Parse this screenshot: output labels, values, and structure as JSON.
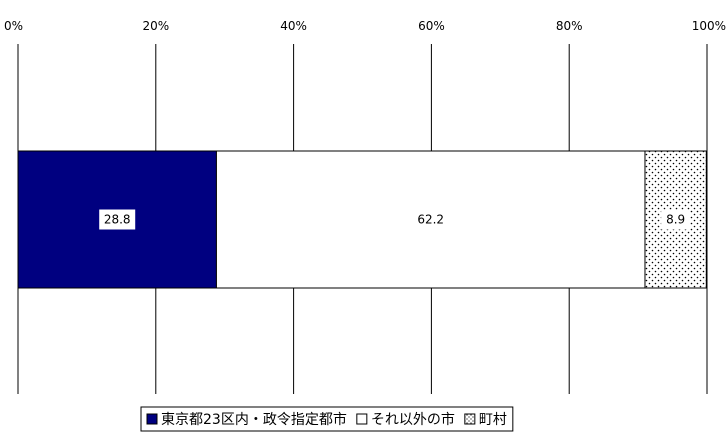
{
  "chart_data": {
    "type": "bar",
    "orientation": "horizontal",
    "stacked": "percent",
    "categories": [
      ""
    ],
    "series": [
      {
        "name": "東京都23区内・政令指定都市",
        "values": [
          28.8
        ],
        "color": "#000080",
        "fill": "solid"
      },
      {
        "name": "それ以外の市",
        "values": [
          62.2
        ],
        "color": "#ffffff",
        "fill": "solid"
      },
      {
        "name": "町村",
        "values": [
          8.9
        ],
        "color": "#ffffff",
        "fill": "dots"
      }
    ],
    "xlim": [
      0,
      100
    ],
    "ticks": [
      "0%",
      "20%",
      "40%",
      "60%",
      "80%",
      "100%"
    ],
    "grid": true,
    "legend_position": "bottom"
  }
}
